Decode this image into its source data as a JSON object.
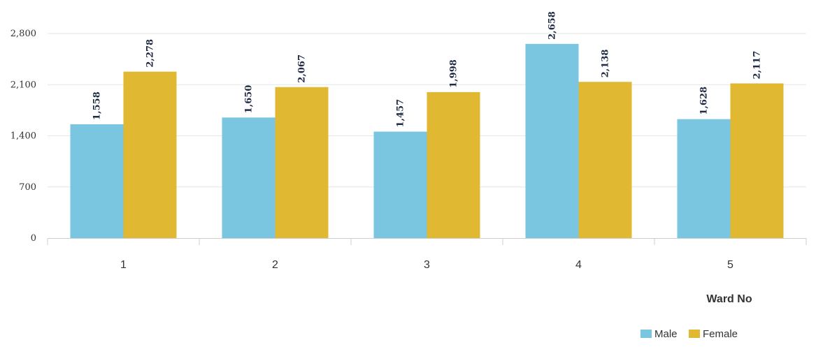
{
  "chart_data": {
    "type": "bar",
    "categories": [
      "1",
      "2",
      "3",
      "4",
      "5"
    ],
    "series": [
      {
        "name": "Male",
        "values": [
          1558,
          1650,
          1457,
          2658,
          1628
        ],
        "color": "#7ac5e0"
      },
      {
        "name": "Female",
        "values": [
          2278,
          2067,
          1998,
          2138,
          2117
        ],
        "color": "#e0b832"
      }
    ],
    "data_labels": {
      "Male": [
        "1,558",
        "1,650",
        "1,457",
        "2,658",
        "1,628"
      ],
      "Female": [
        "2,278",
        "2,067",
        "1,998",
        "2,138",
        "2,117"
      ]
    },
    "title": "",
    "xlabel": "Ward No",
    "ylabel": "",
    "ylim": [
      0,
      2800
    ],
    "yticks": [
      0,
      700,
      1400,
      2100,
      2800
    ],
    "ytick_labels": [
      "0",
      "700",
      "1,400",
      "2,100",
      "2,800"
    ],
    "grid": true,
    "legend": {
      "position": "bottom-right",
      "entries": [
        "Male",
        "Female"
      ]
    }
  }
}
